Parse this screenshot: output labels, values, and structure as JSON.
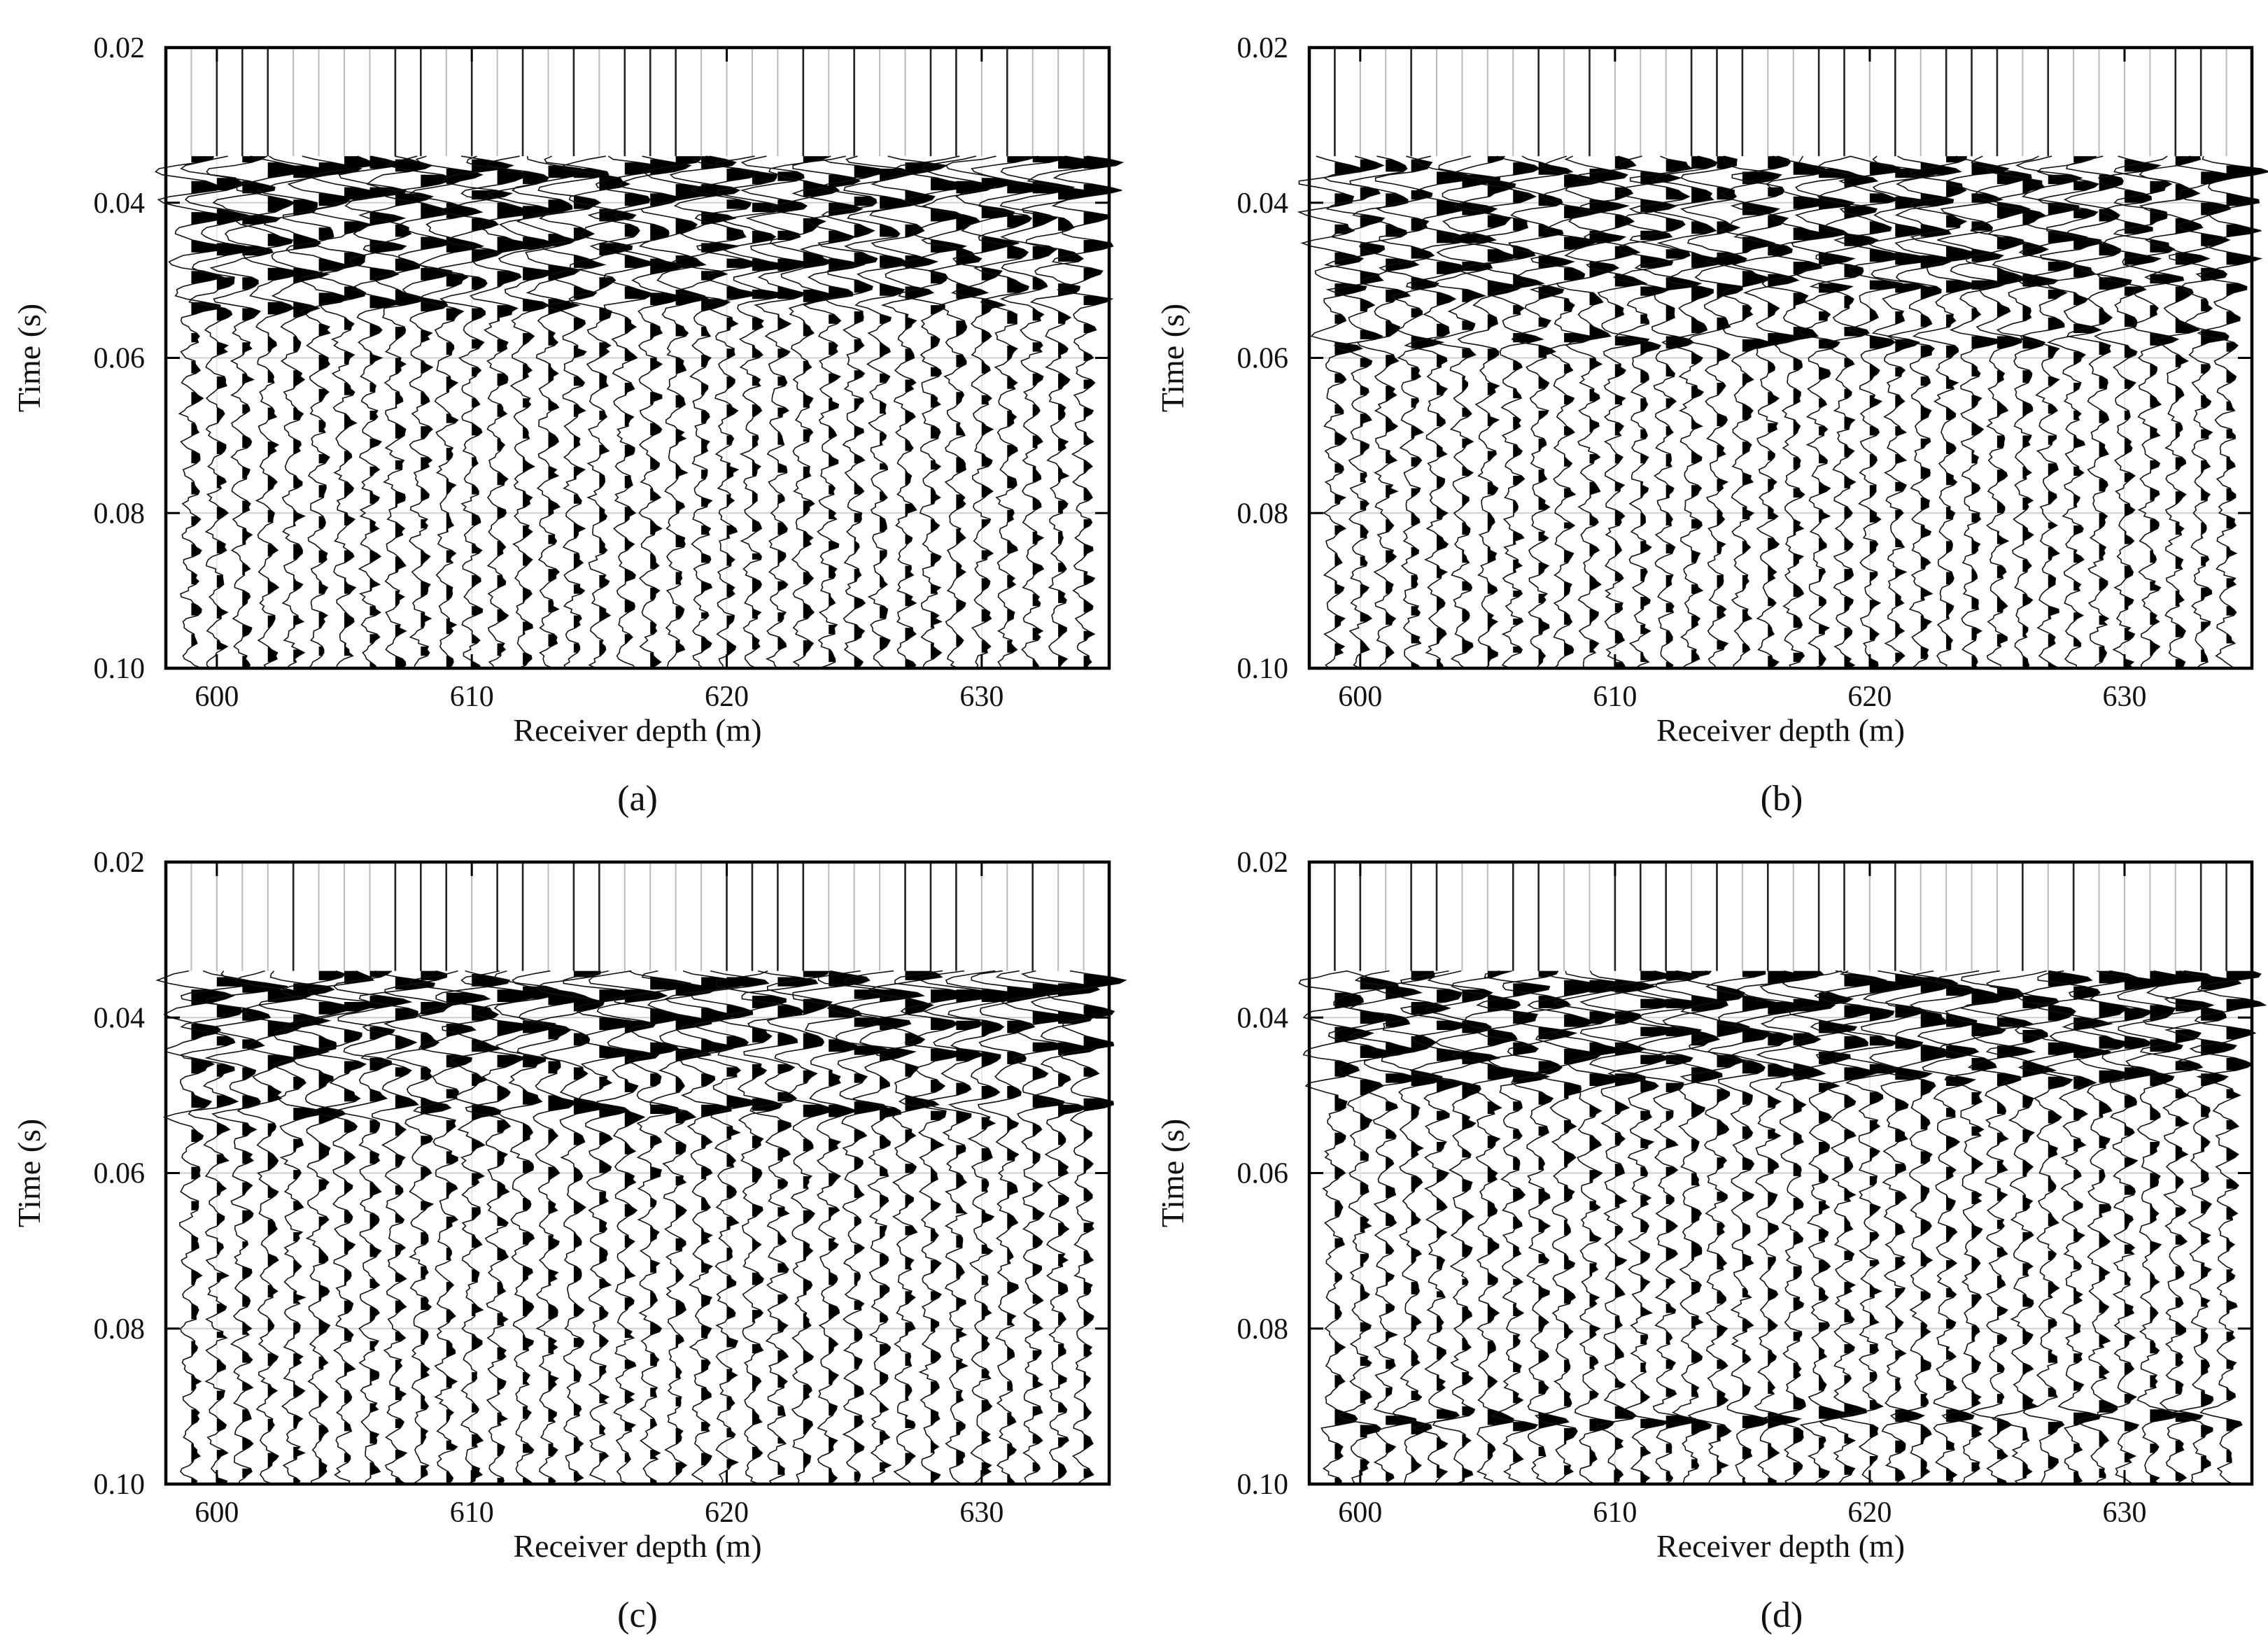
{
  "figure": {
    "description_free": true
  },
  "chart_data": [
    {
      "type": "line",
      "panel": "(a)",
      "title": "",
      "xlabel": "Receiver depth (m)",
      "ylabel": "Time (s)",
      "xlim": [
        598,
        635
      ],
      "ylim": [
        0.02,
        0.1
      ],
      "y_inverted": true,
      "x_ticks": [
        600,
        610,
        620,
        630
      ],
      "x_tick_labels": [
        "600",
        "610",
        "620",
        "630"
      ],
      "y_ticks": [
        0.02,
        0.04,
        0.06,
        0.08,
        0.1
      ],
      "y_tick_labels": [
        "0.02",
        "0.04",
        "0.06",
        "0.08",
        "0.10"
      ],
      "grid": true,
      "trace_depths": [
        599,
        600,
        601,
        602,
        603,
        604,
        605,
        606,
        607,
        608,
        609,
        610,
        611,
        612,
        613,
        614,
        615,
        616,
        617,
        618,
        619,
        620,
        621,
        622,
        623,
        624,
        625,
        626,
        627,
        628,
        629,
        630,
        631,
        632,
        633,
        634
      ],
      "first_arrival_s": 0.034,
      "strong_reflections_s": [
        0.036,
        0.039,
        0.042,
        0.046,
        0.049,
        0.053
      ],
      "seed": 11
    },
    {
      "type": "line",
      "panel": "(b)",
      "title": "",
      "xlabel": "Receiver depth (m)",
      "ylabel": "Time (s)",
      "xlim": [
        598,
        635
      ],
      "ylim": [
        0.02,
        0.1
      ],
      "y_inverted": true,
      "x_ticks": [
        600,
        610,
        620,
        630
      ],
      "x_tick_labels": [
        "600",
        "610",
        "620",
        "630"
      ],
      "y_ticks": [
        0.02,
        0.04,
        0.06,
        0.08,
        0.1
      ],
      "y_tick_labels": [
        "0.02",
        "0.04",
        "0.06",
        "0.08",
        "0.10"
      ],
      "grid": true,
      "trace_depths": [
        599,
        600,
        601,
        602,
        603,
        604,
        605,
        606,
        607,
        608,
        609,
        610,
        611,
        612,
        613,
        614,
        615,
        616,
        617,
        618,
        619,
        620,
        621,
        622,
        623,
        624,
        625,
        626,
        627,
        628,
        629,
        630,
        631,
        632,
        633,
        634
      ],
      "first_arrival_s": 0.034,
      "strong_reflections_s": [
        0.037,
        0.041,
        0.045,
        0.048,
        0.051,
        0.058
      ],
      "seed": 23
    },
    {
      "type": "line",
      "panel": "(c)",
      "title": "",
      "xlabel": "Receiver depth (m)",
      "ylabel": "Time (s)",
      "xlim": [
        598,
        635
      ],
      "ylim": [
        0.02,
        0.1
      ],
      "y_inverted": true,
      "x_ticks": [
        600,
        610,
        620,
        630
      ],
      "x_tick_labels": [
        "600",
        "610",
        "620",
        "630"
      ],
      "y_ticks": [
        0.02,
        0.04,
        0.06,
        0.08,
        0.1
      ],
      "y_tick_labels": [
        "0.02",
        "0.04",
        "0.06",
        "0.08",
        "0.10"
      ],
      "grid": true,
      "trace_depths": [
        599,
        600,
        601,
        602,
        603,
        604,
        605,
        606,
        607,
        608,
        609,
        610,
        611,
        612,
        613,
        614,
        615,
        616,
        617,
        618,
        619,
        620,
        621,
        622,
        623,
        624,
        625,
        626,
        627,
        628,
        629,
        630,
        631,
        632,
        633,
        634
      ],
      "first_arrival_s": 0.034,
      "strong_reflections_s": [
        0.036,
        0.038,
        0.041,
        0.045,
        0.052
      ],
      "seed": 37
    },
    {
      "type": "line",
      "panel": "(d)",
      "title": "",
      "xlabel": "Receiver depth (m)",
      "ylabel": "Time (s)",
      "xlim": [
        598,
        635
      ],
      "ylim": [
        0.02,
        0.1
      ],
      "y_inverted": true,
      "x_ticks": [
        600,
        610,
        620,
        630
      ],
      "x_tick_labels": [
        "600",
        "610",
        "620",
        "630"
      ],
      "y_ticks": [
        0.02,
        0.04,
        0.06,
        0.08,
        0.1
      ],
      "y_tick_labels": [
        "0.02",
        "0.04",
        "0.06",
        "0.08",
        "0.10"
      ],
      "grid": true,
      "trace_depths": [
        599,
        600,
        601,
        602,
        603,
        604,
        605,
        606,
        607,
        608,
        609,
        610,
        611,
        612,
        613,
        614,
        615,
        616,
        617,
        618,
        619,
        620,
        621,
        622,
        623,
        624,
        625,
        626,
        627,
        628,
        629,
        630,
        631,
        632,
        633,
        634
      ],
      "first_arrival_s": 0.034,
      "strong_reflections_s": [
        0.036,
        0.039,
        0.042,
        0.045,
        0.048,
        0.092
      ],
      "seed": 53
    }
  ]
}
